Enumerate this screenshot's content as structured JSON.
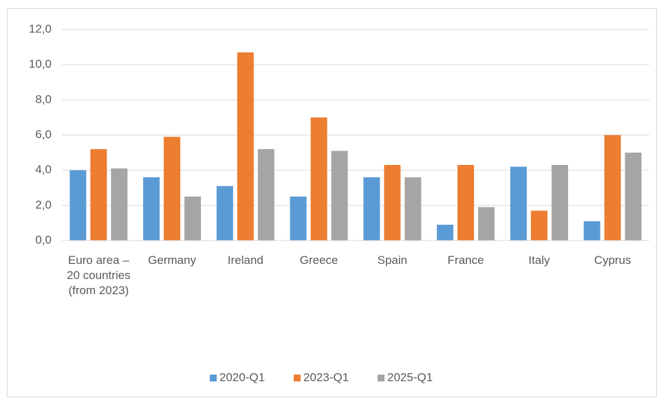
{
  "chart_data": {
    "type": "bar",
    "categories": [
      "Euro area – 20 countries (from 2023)",
      "Germany",
      "Ireland",
      "Greece",
      "Spain",
      "France",
      "Italy",
      "Cyprus"
    ],
    "series": [
      {
        "name": "2020-Q1",
        "color": "#5b9bd5",
        "values": [
          4.0,
          3.6,
          3.1,
          2.5,
          3.6,
          0.9,
          4.2,
          1.1
        ]
      },
      {
        "name": "2023-Q1",
        "color": "#ed7d31",
        "values": [
          5.2,
          5.9,
          10.7,
          7.0,
          4.3,
          4.3,
          1.7,
          6.0
        ]
      },
      {
        "name": "2025-Q1",
        "color": "#a5a5a5",
        "values": [
          4.1,
          2.5,
          5.2,
          5.1,
          3.6,
          1.9,
          4.3,
          5.0
        ]
      }
    ],
    "ylim": [
      0,
      12
    ],
    "yticks": [
      {
        "value": 0,
        "label": "0,0"
      },
      {
        "value": 2,
        "label": "2,0"
      },
      {
        "value": 4,
        "label": "4,0"
      },
      {
        "value": 6,
        "label": "6,0"
      },
      {
        "value": 8,
        "label": "8,0"
      },
      {
        "value": 10,
        "label": "10,0"
      },
      {
        "value": 12,
        "label": "12,0"
      }
    ],
    "grid": true,
    "legend": "bottom"
  }
}
